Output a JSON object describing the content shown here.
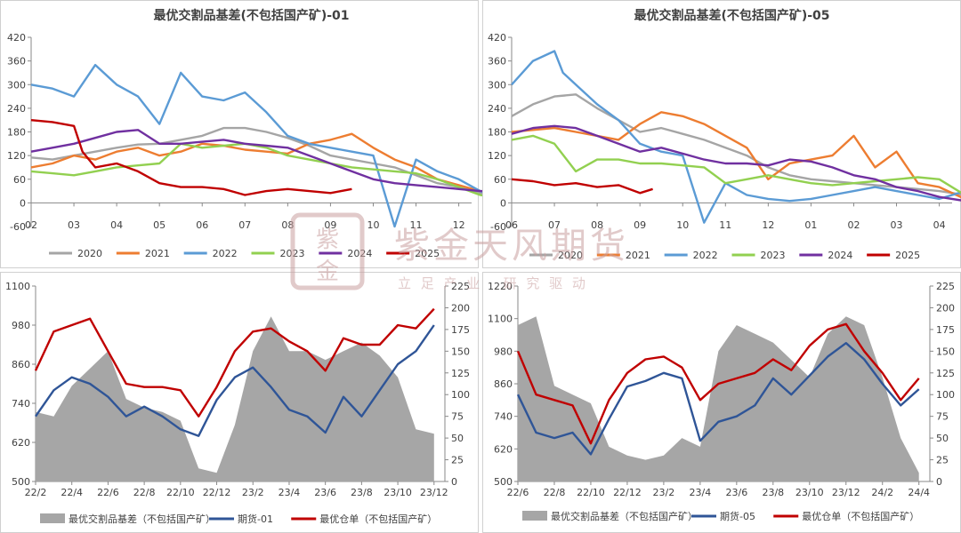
{
  "watermark": {
    "company": "紫金天风期货",
    "slogan": "立 足 产 业   研 究 驱 动",
    "seal_text": "紫金天风",
    "color": "#c9a0a0"
  },
  "chart_data": [
    {
      "type": "line",
      "title": "最优交割品基差(不包括国产矿)-01",
      "xlabel": "",
      "ylabel": "",
      "ylim": [
        -60,
        420
      ],
      "yticks": [
        -60,
        0,
        60,
        120,
        180,
        240,
        300,
        360,
        420
      ],
      "x_tick_labels": [
        "02",
        "03",
        "04",
        "05",
        "06",
        "07",
        "08",
        "09",
        "10",
        "11",
        "12"
      ],
      "grid": false,
      "legend_position": "bottom",
      "series": [
        {
          "name": "2020",
          "color": "#a5a5a5",
          "x": [
            0,
            0.5,
            1,
            1.5,
            2,
            2.5,
            3,
            3.5,
            4,
            4.5,
            5,
            5.5,
            6,
            6.5,
            7,
            7.5,
            8,
            8.5,
            9,
            9.5,
            10,
            10.5,
            11
          ],
          "values": [
            115,
            110,
            120,
            130,
            140,
            148,
            150,
            160,
            170,
            190,
            190,
            180,
            165,
            145,
            120,
            110,
            100,
            90,
            70,
            50,
            40,
            25,
            15
          ]
        },
        {
          "name": "2021",
          "color": "#ed7d31",
          "x": [
            0,
            0.5,
            1,
            1.5,
            2,
            2.5,
            3,
            3.5,
            4,
            4.5,
            5,
            5.5,
            6,
            6.5,
            7,
            7.5,
            8,
            8.5,
            9,
            9.5,
            10,
            10.5,
            11
          ],
          "values": [
            90,
            100,
            120,
            110,
            130,
            140,
            120,
            130,
            150,
            145,
            135,
            130,
            125,
            150,
            160,
            175,
            140,
            110,
            90,
            60,
            45,
            30,
            20
          ]
        },
        {
          "name": "2022",
          "color": "#5b9bd5",
          "x": [
            0,
            0.5,
            1,
            1.5,
            2,
            2.5,
            3,
            3.5,
            4,
            4.5,
            5,
            5.5,
            6,
            6.5,
            7,
            7.5,
            8,
            8.5,
            9,
            9.5,
            10,
            10.5,
            11,
            11.2
          ],
          "values": [
            300,
            290,
            270,
            350,
            300,
            270,
            200,
            330,
            270,
            260,
            280,
            230,
            170,
            150,
            140,
            130,
            120,
            -60,
            110,
            80,
            60,
            30,
            10,
            20
          ]
        },
        {
          "name": "2023",
          "color": "#92d050",
          "x": [
            0,
            0.5,
            1,
            1.5,
            2,
            2.5,
            3,
            3.5,
            4,
            4.5,
            5,
            5.5,
            6,
            6.5,
            7,
            7.5,
            8,
            8.5,
            9,
            9.5,
            10,
            10.5,
            11,
            11.2
          ],
          "values": [
            80,
            75,
            70,
            80,
            90,
            95,
            100,
            150,
            140,
            145,
            150,
            140,
            120,
            110,
            100,
            90,
            85,
            80,
            75,
            60,
            40,
            20,
            10,
            15
          ]
        },
        {
          "name": "2024",
          "color": "#7030a0",
          "x": [
            0,
            0.5,
            1,
            1.5,
            2,
            2.5,
            3,
            3.5,
            4,
            4.5,
            5,
            5.5,
            6,
            6.5,
            7,
            7.5,
            8,
            8.5,
            9,
            9.5,
            10,
            10.5,
            11
          ],
          "values": [
            130,
            140,
            150,
            165,
            180,
            185,
            150,
            150,
            155,
            160,
            150,
            145,
            140,
            120,
            100,
            80,
            60,
            50,
            45,
            40,
            35,
            30,
            30
          ]
        },
        {
          "name": "2025",
          "color": "#c00000",
          "x": [
            0,
            0.5,
            1,
            1.2,
            1.5,
            2,
            2.5,
            3,
            3.5,
            4,
            4.5,
            5,
            5.5,
            6,
            6.5,
            7,
            7.5
          ],
          "values": [
            210,
            205,
            195,
            130,
            90,
            100,
            80,
            50,
            40,
            40,
            35,
            20,
            30,
            35,
            30,
            25,
            35
          ]
        }
      ]
    },
    {
      "type": "line",
      "title": "最优交割品基差(不包括国产矿)-05",
      "xlabel": "",
      "ylabel": "",
      "ylim": [
        -60,
        420
      ],
      "yticks": [
        -60,
        0,
        60,
        120,
        180,
        240,
        300,
        360,
        420
      ],
      "x_tick_labels": [
        "06",
        "07",
        "08",
        "09",
        "10",
        "11",
        "12",
        "01",
        "02",
        "03",
        "04"
      ],
      "grid": false,
      "legend_position": "bottom",
      "series": [
        {
          "name": "2020",
          "color": "#a5a5a5",
          "x": [
            0,
            0.5,
            1,
            1.5,
            2,
            2.5,
            3,
            3.5,
            4,
            4.5,
            5,
            5.5,
            6,
            6.5,
            7,
            7.5,
            8,
            8.5,
            9,
            9.5,
            10,
            10.6
          ],
          "values": [
            220,
            250,
            270,
            275,
            240,
            210,
            180,
            190,
            175,
            160,
            140,
            120,
            90,
            70,
            60,
            55,
            50,
            45,
            40,
            35,
            30,
            20
          ]
        },
        {
          "name": "2021",
          "color": "#ed7d31",
          "x": [
            0,
            0.5,
            1,
            1.5,
            2,
            2.5,
            3,
            3.5,
            4,
            4.5,
            5,
            5.5,
            6,
            6.5,
            7,
            7.5,
            8,
            8.5,
            9,
            9.5,
            10,
            10.6
          ],
          "values": [
            180,
            185,
            190,
            180,
            170,
            160,
            200,
            230,
            220,
            200,
            170,
            140,
            60,
            100,
            110,
            120,
            170,
            90,
            130,
            50,
            40,
            10
          ]
        },
        {
          "name": "2022",
          "color": "#5b9bd5",
          "x": [
            0,
            0.5,
            1,
            1.2,
            1.5,
            2,
            2.5,
            3,
            3.5,
            4,
            4.5,
            5,
            5.5,
            6,
            6.5,
            7,
            7.5,
            8,
            8.5,
            9,
            9.5,
            10,
            10.6
          ],
          "values": [
            300,
            360,
            385,
            330,
            300,
            250,
            210,
            150,
            130,
            120,
            -50,
            50,
            20,
            10,
            5,
            10,
            20,
            30,
            40,
            30,
            20,
            10,
            30
          ]
        },
        {
          "name": "2023",
          "color": "#92d050",
          "x": [
            0,
            0.5,
            1,
            1.5,
            2,
            2.5,
            3,
            3.5,
            4,
            4.5,
            5,
            5.5,
            6,
            6.5,
            7,
            7.5,
            8,
            8.5,
            9,
            9.5,
            10,
            10.6
          ],
          "values": [
            160,
            170,
            150,
            80,
            110,
            110,
            100,
            100,
            95,
            90,
            50,
            60,
            70,
            60,
            50,
            45,
            50,
            55,
            60,
            65,
            60,
            20
          ]
        },
        {
          "name": "2024",
          "color": "#7030a0",
          "x": [
            0,
            0.5,
            1,
            1.5,
            2,
            2.5,
            3,
            3.5,
            4,
            4.5,
            5,
            5.5,
            6,
            6.5,
            7,
            7.5,
            8,
            8.5,
            9,
            9.5,
            10,
            10.6
          ],
          "values": [
            175,
            190,
            195,
            190,
            170,
            150,
            130,
            140,
            125,
            110,
            100,
            100,
            95,
            110,
            105,
            90,
            70,
            60,
            40,
            30,
            15,
            5
          ]
        },
        {
          "name": "2025",
          "color": "#c00000",
          "x": [
            0,
            0.5,
            1,
            1.5,
            2,
            2.5,
            3,
            3.3
          ],
          "values": [
            60,
            55,
            45,
            50,
            40,
            45,
            25,
            35
          ]
        }
      ]
    },
    {
      "type": "line",
      "title": "",
      "xlabel": "",
      "ylabel": "",
      "ylim_left": [
        500,
        1100
      ],
      "yticks_left": [
        500,
        620,
        740,
        860,
        980,
        1100
      ],
      "ylim_right": [
        0,
        225
      ],
      "yticks_right": [
        0,
        25,
        50,
        75,
        100,
        125,
        150,
        175,
        200,
        225
      ],
      "x_tick_labels": [
        "22/2",
        "22/4",
        "22/6",
        "22/8",
        "22/10",
        "22/12",
        "23/2",
        "23/4",
        "23/6",
        "23/8",
        "23/10",
        "23/12"
      ],
      "grid": false,
      "legend_position": "bottom",
      "series": [
        {
          "name": "最优交割品基差（不包括国产矿）",
          "kind": "area",
          "axis": "right",
          "color": "#a6a6a6",
          "x": [
            0,
            0.5,
            1,
            1.5,
            2,
            2.5,
            3,
            3.5,
            4,
            4.5,
            5,
            5.5,
            6,
            6.5,
            7,
            7.5,
            8,
            8.5,
            9,
            9.5,
            10,
            10.5,
            11
          ],
          "values": [
            80,
            75,
            110,
            130,
            150,
            95,
            85,
            80,
            70,
            15,
            10,
            65,
            150,
            190,
            150,
            150,
            140,
            150,
            160,
            145,
            120,
            60,
            55
          ]
        },
        {
          "name": "期货-01",
          "kind": "line",
          "axis": "left",
          "color": "#2f5597",
          "x": [
            0,
            0.5,
            1,
            1.5,
            2,
            2.5,
            3,
            3.5,
            4,
            4.5,
            5,
            5.5,
            6,
            6.5,
            7,
            7.5,
            8,
            8.5,
            9,
            9.5,
            10,
            10.5,
            11
          ],
          "values": [
            700,
            780,
            820,
            800,
            760,
            700,
            730,
            700,
            660,
            640,
            750,
            820,
            850,
            790,
            720,
            700,
            650,
            760,
            700,
            780,
            860,
            900,
            980
          ]
        },
        {
          "name": "最优仓单（不包括国产矿）",
          "kind": "line",
          "axis": "left",
          "color": "#c00000",
          "x": [
            0,
            0.5,
            1,
            1.5,
            2,
            2.5,
            3,
            3.5,
            4,
            4.5,
            5,
            5.5,
            6,
            6.5,
            7,
            7.5,
            8,
            8.5,
            9,
            9.5,
            10,
            10.5,
            11
          ],
          "values": [
            840,
            960,
            980,
            1000,
            900,
            800,
            790,
            790,
            780,
            700,
            790,
            900,
            960,
            970,
            930,
            900,
            840,
            940,
            920,
            920,
            980,
            970,
            1030
          ]
        }
      ]
    },
    {
      "type": "line",
      "title": "",
      "xlabel": "",
      "ylabel": "",
      "ylim_left": [
        500,
        1220
      ],
      "yticks_left": [
        500,
        620,
        740,
        860,
        980,
        1100,
        1220
      ],
      "ylim_right": [
        0,
        225
      ],
      "yticks_right": [
        0,
        25,
        50,
        75,
        100,
        125,
        150,
        175,
        200,
        225
      ],
      "x_tick_labels": [
        "22/6",
        "22/8",
        "22/10",
        "22/12",
        "23/2",
        "23/4",
        "23/6",
        "23/8",
        "23/10",
        "23/12",
        "24/2",
        "24/4"
      ],
      "grid": false,
      "legend_position": "bottom",
      "series": [
        {
          "name": "最优交割品基差（不包括国产矿）",
          "kind": "area",
          "axis": "right",
          "color": "#a6a6a6",
          "x": [
            0,
            0.5,
            1,
            1.5,
            2,
            2.5,
            3,
            3.5,
            4,
            4.5,
            5,
            5.5,
            6,
            6.5,
            7,
            7.5,
            8,
            8.5,
            9,
            9.5,
            10,
            10.5,
            11
          ],
          "values": [
            180,
            190,
            110,
            100,
            90,
            40,
            30,
            25,
            30,
            50,
            40,
            150,
            180,
            170,
            160,
            140,
            120,
            170,
            190,
            180,
            120,
            50,
            10
          ]
        },
        {
          "name": "期货-05",
          "kind": "line",
          "axis": "left",
          "color": "#2f5597",
          "x": [
            0,
            0.5,
            1,
            1.5,
            2,
            2.5,
            3,
            3.5,
            4,
            4.5,
            5,
            5.5,
            6,
            6.5,
            7,
            7.5,
            8,
            8.5,
            9,
            9.5,
            10,
            10.5,
            11
          ],
          "values": [
            820,
            680,
            660,
            680,
            600,
            730,
            850,
            870,
            900,
            880,
            650,
            720,
            740,
            780,
            880,
            820,
            890,
            960,
            1010,
            950,
            860,
            780,
            840
          ]
        },
        {
          "name": "最优仓单（不包括国产矿）",
          "kind": "line",
          "axis": "left",
          "color": "#c00000",
          "x": [
            0,
            0.5,
            1,
            1.5,
            2,
            2.5,
            3,
            3.5,
            4,
            4.5,
            5,
            5.5,
            6,
            6.5,
            7,
            7.5,
            8,
            8.5,
            9,
            9.5,
            10,
            10.5,
            11
          ],
          "values": [
            980,
            820,
            800,
            780,
            640,
            800,
            900,
            950,
            960,
            920,
            800,
            860,
            880,
            900,
            950,
            910,
            1000,
            1060,
            1080,
            980,
            900,
            800,
            880
          ]
        }
      ]
    }
  ]
}
